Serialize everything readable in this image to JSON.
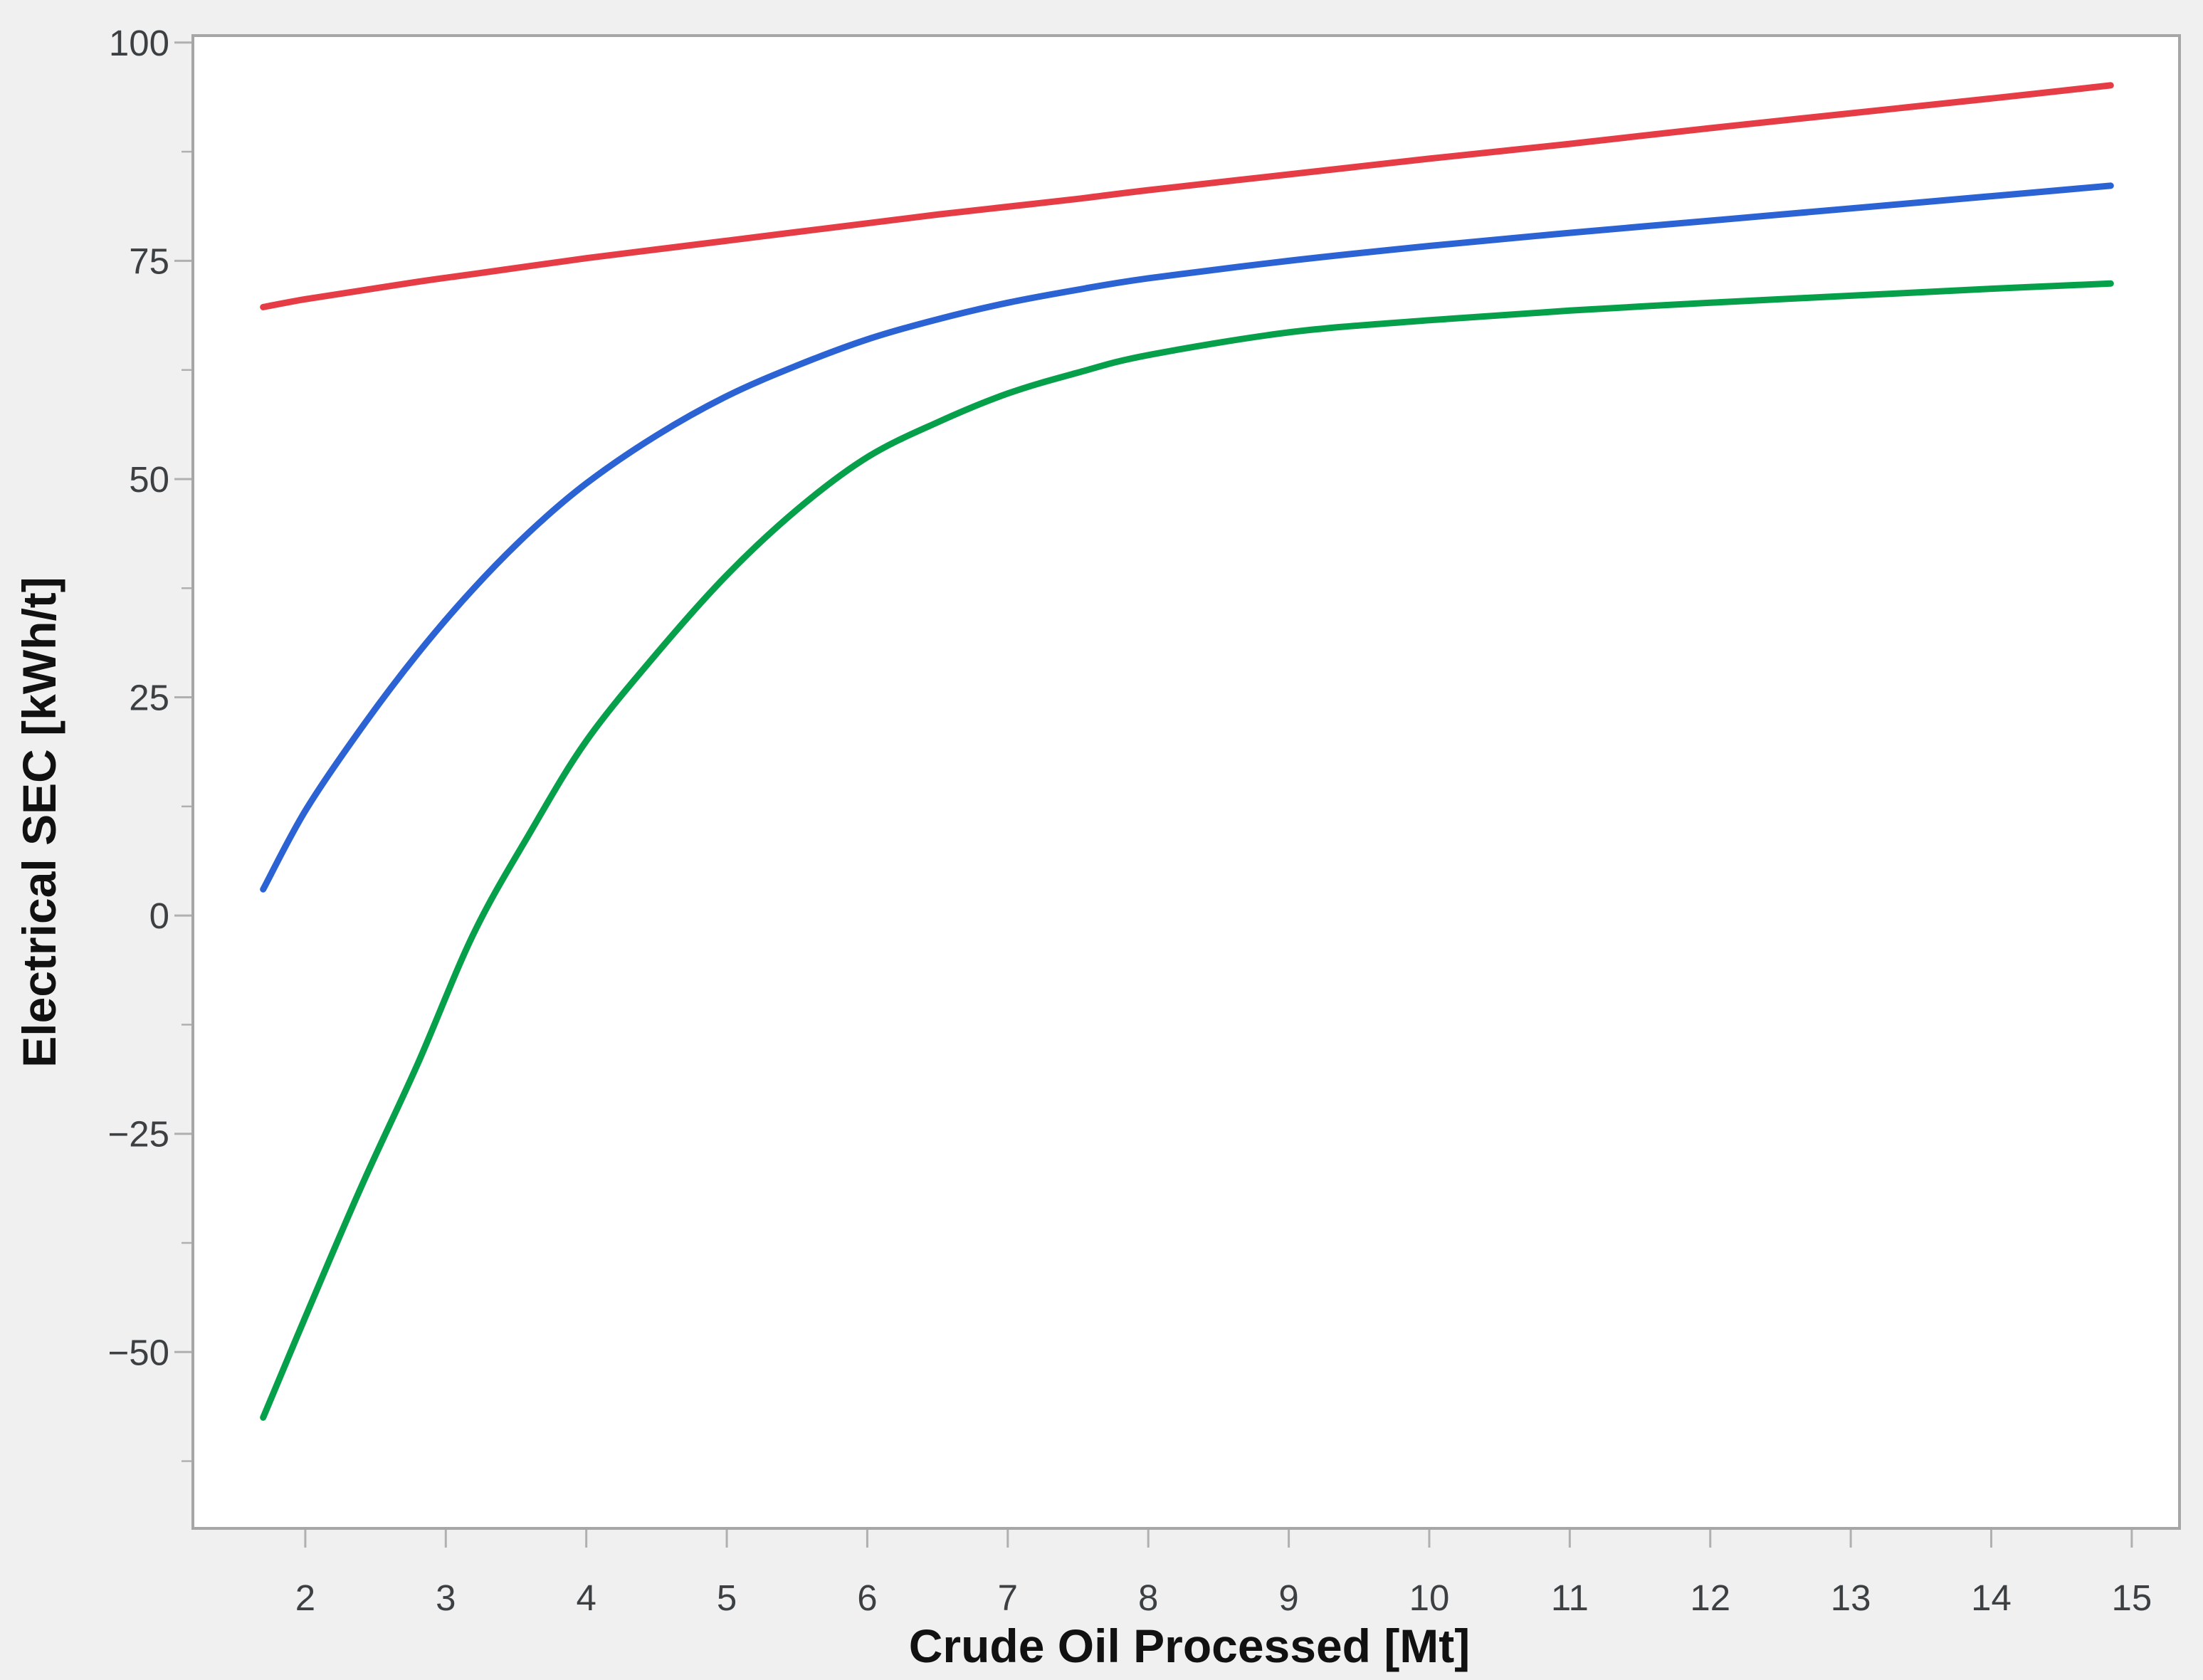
{
  "figure": {
    "background_color": "#f0f0f0",
    "plot_background_color": "#ffffff",
    "frame_color": "#a6a6a6",
    "tick_color": "#b0b0b0",
    "tick_label_color": "#3c4043",
    "axis_title_color": "#111111"
  },
  "chart_data": {
    "type": "line",
    "title": "",
    "xlabel": "Crude Oil Processed [Mt]",
    "ylabel": "Electrical SEC [kWh/t]",
    "xlim": [
      1.2,
      15.34
    ],
    "ylim": [
      -70.2,
      100.8
    ],
    "grid": false,
    "legend_position": "none",
    "x_ticks": [
      2,
      3,
      4,
      5,
      6,
      7,
      8,
      9,
      10,
      11,
      12,
      13,
      14,
      15
    ],
    "x_tick_labels": [
      "2",
      "3",
      "4",
      "5",
      "6",
      "7",
      "8",
      "9",
      "10",
      "11",
      "12",
      "13",
      "14",
      "15"
    ],
    "y_ticks": [
      -50,
      -25,
      0,
      25,
      50,
      75,
      100
    ],
    "y_tick_labels": [
      "−50",
      "−25",
      "0",
      "25",
      "50",
      "75",
      "100"
    ],
    "y_minor_ticks": [
      -62.5,
      -37.5,
      -12.5,
      12.5,
      37.5,
      62.5,
      87.5
    ],
    "x": [
      1.7,
      2.0,
      2.4,
      2.8,
      3.2,
      3.6,
      4.0,
      4.5,
      5.0,
      5.5,
      6.0,
      6.5,
      7.0,
      7.5,
      8.0,
      9.0,
      10.0,
      11.0,
      12.0,
      13.0,
      14.0,
      14.85
    ],
    "series": [
      {
        "name": "red-curve",
        "color": "#e63c46",
        "stroke_width": 9,
        "values": [
          69.7,
          70.6,
          71.6,
          72.6,
          73.5,
          74.4,
          75.3,
          76.3,
          77.3,
          78.3,
          79.3,
          80.3,
          81.2,
          82.1,
          83.1,
          84.9,
          86.7,
          88.4,
          90.2,
          91.9,
          93.6,
          95.1
        ]
      },
      {
        "name": "blue-curve",
        "color": "#2b63d5",
        "stroke_width": 9,
        "values": [
          3.0,
          12.0,
          21.5,
          30.0,
          37.5,
          44.0,
          49.5,
          55.0,
          59.5,
          63.0,
          66.0,
          68.3,
          70.2,
          71.7,
          73.0,
          75.0,
          76.7,
          78.2,
          79.6,
          81.0,
          82.4,
          83.6
        ]
      },
      {
        "name": "green-curve",
        "color": "#07a04a",
        "stroke_width": 9,
        "values": [
          -57.5,
          -46.0,
          -31.0,
          -17.0,
          -2.0,
          9.5,
          20.0,
          30.0,
          39.0,
          46.5,
          52.5,
          56.5,
          59.8,
          62.2,
          64.2,
          66.8,
          68.2,
          69.3,
          70.2,
          71.0,
          71.8,
          72.4
        ]
      }
    ]
  }
}
